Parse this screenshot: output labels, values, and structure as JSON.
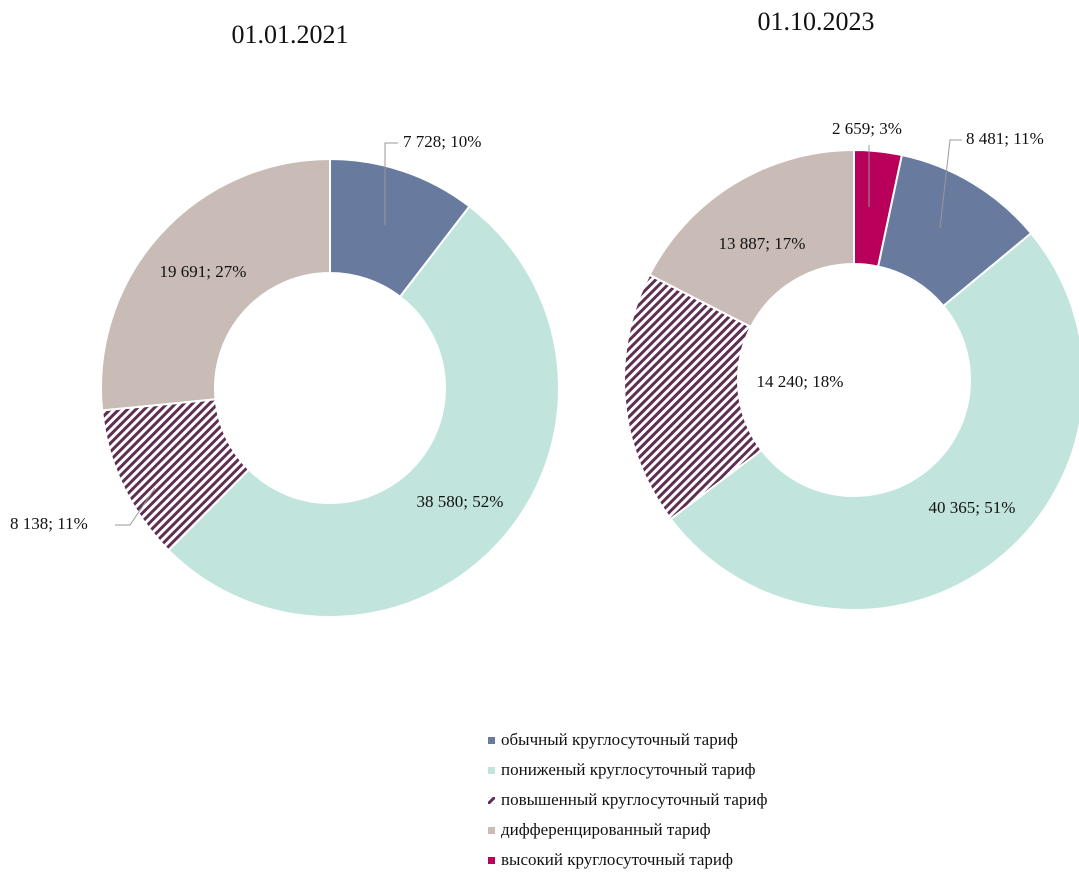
{
  "chart_data": [
    {
      "type": "donut",
      "title": "01.01.2021",
      "categories": [
        "обычный круглосуточный тариф",
        "пониженый круглосуточный тариф",
        "повышенный круглосуточный тариф",
        "дифференцированный тариф"
      ],
      "values": [
        7728,
        38580,
        8138,
        19691
      ],
      "value_labels": [
        "7 728; 10%",
        "38 580; 52%",
        "8 138; 11%",
        "19 691; 27%"
      ],
      "colors": [
        "#687a9e",
        "#c1e5dd",
        "#5e2f52",
        "#c9bcb7"
      ],
      "hatched": [
        false,
        false,
        true,
        false
      ]
    },
    {
      "type": "donut",
      "title": "01.10.2023",
      "categories": [
        "высокий круглосуточный тариф",
        "обычный круглосуточный тариф",
        "пониженый круглосуточный тариф",
        "повышенный круглосуточный тариф",
        "дифференцированный тариф"
      ],
      "values": [
        2659,
        8481,
        40365,
        14240,
        13887
      ],
      "value_labels": [
        "2 659; 3%",
        "8 481; 11%",
        "40 365; 51%",
        "14 240; 18%",
        "13 887; 17%"
      ],
      "colors": [
        "#b8005a",
        "#687a9e",
        "#c1e5dd",
        "#5e2f52",
        "#c9bcb7"
      ],
      "hatched": [
        false,
        false,
        false,
        true,
        false
      ]
    }
  ]
}
